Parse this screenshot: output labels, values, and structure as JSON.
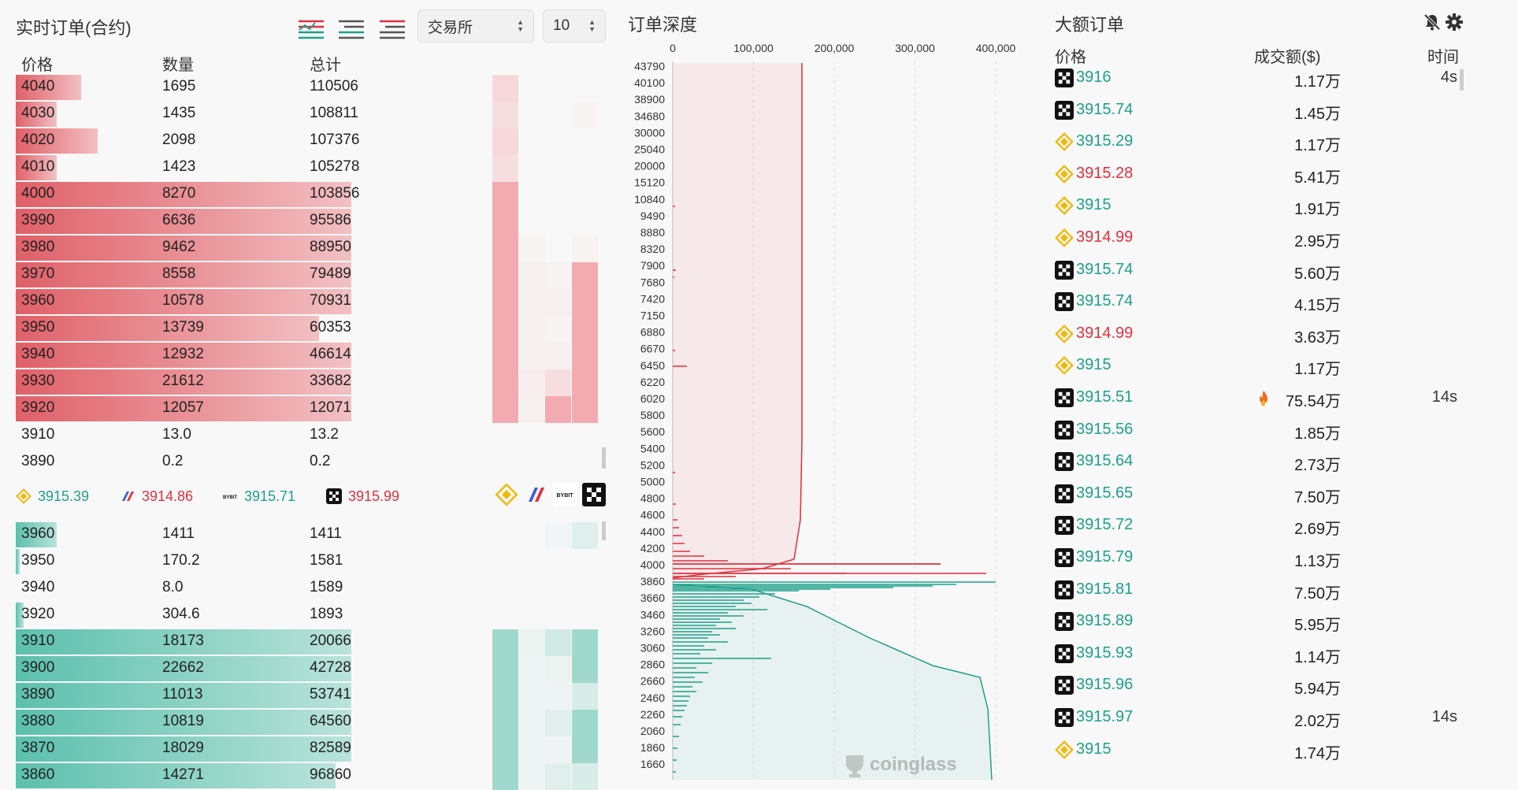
{
  "orderbook": {
    "title": "实时订单(合约)",
    "exchange_select": "交易所",
    "depth_select": "10",
    "headers": {
      "price": "价格",
      "qty": "数量",
      "total": "总计"
    },
    "asks": [
      {
        "price": "4040",
        "qty": "1695",
        "total": "110506",
        "fill": 0.16,
        "heavy": false
      },
      {
        "price": "4030",
        "qty": "1435",
        "total": "108811",
        "fill": 0.1,
        "heavy": false
      },
      {
        "price": "4020",
        "qty": "2098",
        "total": "107376",
        "fill": 0.2,
        "heavy": false
      },
      {
        "price": "4010",
        "qty": "1423",
        "total": "105278",
        "fill": 0.1,
        "heavy": false
      },
      {
        "price": "4000",
        "qty": "8270",
        "total": "103856",
        "fill": 0.82,
        "heavy": true
      },
      {
        "price": "3990",
        "qty": "6636",
        "total": "95586",
        "fill": 0.82,
        "heavy": true
      },
      {
        "price": "3980",
        "qty": "9462",
        "total": "88950",
        "fill": 0.82,
        "heavy": true
      },
      {
        "price": "3970",
        "qty": "8558",
        "total": "79489",
        "fill": 0.82,
        "heavy": true
      },
      {
        "price": "3960",
        "qty": "10578",
        "total": "70931",
        "fill": 0.82,
        "heavy": true
      },
      {
        "price": "3950",
        "qty": "13739",
        "total": "60353",
        "fill": 0.74,
        "heavy": true
      },
      {
        "price": "3940",
        "qty": "12932",
        "total": "46614",
        "fill": 0.82,
        "heavy": true
      },
      {
        "price": "3930",
        "qty": "21612",
        "total": "33682",
        "fill": 0.82,
        "heavy": true
      },
      {
        "price": "3920",
        "qty": "12057",
        "total": "12071",
        "fill": 0.82,
        "heavy": true
      },
      {
        "price": "3910",
        "qty": "13.0",
        "total": "13.2",
        "fill": 0,
        "heavy": false
      },
      {
        "price": "3890",
        "qty": "0.2",
        "total": "0.2",
        "fill": 0,
        "heavy": false
      }
    ],
    "exchange_prices": [
      {
        "icon": "binance-icon",
        "price": "3915.39",
        "dir": "up"
      },
      {
        "icon": "bitmex-icon",
        "price": "3914.86",
        "dir": "down"
      },
      {
        "icon": "bybit-icon",
        "price": "3915.71",
        "dir": "up"
      },
      {
        "icon": "okx-icon",
        "price": "3915.99",
        "dir": "down"
      }
    ],
    "bids": [
      {
        "price": "3960",
        "qty": "1411",
        "total": "1411",
        "fill": 0.1,
        "heavy": false
      },
      {
        "price": "3950",
        "qty": "170.2",
        "total": "1581",
        "fill": 0.01,
        "heavy": false
      },
      {
        "price": "3940",
        "qty": "8.0",
        "total": "1589",
        "fill": 0,
        "heavy": false
      },
      {
        "price": "3920",
        "qty": "304.6",
        "total": "1893",
        "fill": 0.02,
        "heavy": false
      },
      {
        "price": "3910",
        "qty": "18173",
        "total": "20066",
        "fill": 0.82,
        "heavy": true
      },
      {
        "price": "3900",
        "qty": "22662",
        "total": "42728",
        "fill": 0.82,
        "heavy": true
      },
      {
        "price": "3890",
        "qty": "11013",
        "total": "53741",
        "fill": 0.82,
        "heavy": true
      },
      {
        "price": "3880",
        "qty": "10819",
        "total": "64560",
        "fill": 0.82,
        "heavy": true
      },
      {
        "price": "3870",
        "qty": "18029",
        "total": "82589",
        "fill": 0.82,
        "heavy": true
      },
      {
        "price": "3860",
        "qty": "14271",
        "total": "96860",
        "fill": 0.78,
        "heavy": true
      }
    ],
    "colors": {
      "ask": "#e06068",
      "ask_light": "#f2c0c3",
      "bid": "#5cc0ad",
      "bid_light": "#b9e3da"
    }
  },
  "depth": {
    "title": "订单深度",
    "x_ticks": [
      "0",
      "100,000",
      "200,000",
      "300,000",
      "400,000"
    ],
    "y_labels": [
      "43790",
      "40100",
      "38900",
      "34680",
      "30000",
      "25040",
      "20000",
      "15120",
      "10840",
      "9490",
      "8880",
      "8320",
      "7900",
      "7680",
      "7420",
      "7150",
      "6880",
      "6670",
      "6450",
      "6220",
      "6020",
      "5800",
      "5600",
      "5400",
      "5200",
      "5000",
      "4800",
      "4600",
      "4400",
      "4200",
      "4000",
      "3860",
      "3660",
      "3460",
      "3260",
      "3060",
      "2860",
      "2660",
      "2460",
      "2260",
      "2060",
      "1860",
      "1660"
    ],
    "watermark": "coinglass"
  },
  "big_orders": {
    "title": "大额订单",
    "headers": {
      "price": "价格",
      "amount": "成交额($)",
      "time": "时间"
    },
    "rows": [
      {
        "ex": "okx-icon",
        "price": "3916",
        "side": "buy",
        "amount": "1.17万",
        "time": "4s",
        "fire": false
      },
      {
        "ex": "okx-icon",
        "price": "3915.74",
        "side": "buy",
        "amount": "1.45万",
        "time": "",
        "fire": false
      },
      {
        "ex": "binance-icon",
        "price": "3915.29",
        "side": "buy",
        "amount": "1.17万",
        "time": "",
        "fire": false
      },
      {
        "ex": "binance-icon",
        "price": "3915.28",
        "side": "sell",
        "amount": "5.41万",
        "time": "",
        "fire": false
      },
      {
        "ex": "binance-icon",
        "price": "3915",
        "side": "buy",
        "amount": "1.91万",
        "time": "",
        "fire": false
      },
      {
        "ex": "binance-icon",
        "price": "3914.99",
        "side": "sell",
        "amount": "2.95万",
        "time": "",
        "fire": false
      },
      {
        "ex": "okx-icon",
        "price": "3915.74",
        "side": "buy",
        "amount": "5.60万",
        "time": "",
        "fire": false
      },
      {
        "ex": "okx-icon",
        "price": "3915.74",
        "side": "buy",
        "amount": "4.15万",
        "time": "",
        "fire": false
      },
      {
        "ex": "binance-icon",
        "price": "3914.99",
        "side": "sell",
        "amount": "3.63万",
        "time": "",
        "fire": false
      },
      {
        "ex": "binance-icon",
        "price": "3915",
        "side": "buy",
        "amount": "1.17万",
        "time": "",
        "fire": false
      },
      {
        "ex": "okx-icon",
        "price": "3915.51",
        "side": "buy",
        "amount": "75.54万",
        "time": "14s",
        "fire": true
      },
      {
        "ex": "okx-icon",
        "price": "3915.56",
        "side": "buy",
        "amount": "1.85万",
        "time": "",
        "fire": false
      },
      {
        "ex": "okx-icon",
        "price": "3915.64",
        "side": "buy",
        "amount": "2.73万",
        "time": "",
        "fire": false
      },
      {
        "ex": "okx-icon",
        "price": "3915.65",
        "side": "buy",
        "amount": "7.50万",
        "time": "",
        "fire": false
      },
      {
        "ex": "okx-icon",
        "price": "3915.72",
        "side": "buy",
        "amount": "2.69万",
        "time": "",
        "fire": false
      },
      {
        "ex": "okx-icon",
        "price": "3915.79",
        "side": "buy",
        "amount": "1.13万",
        "time": "",
        "fire": false
      },
      {
        "ex": "okx-icon",
        "price": "3915.81",
        "side": "buy",
        "amount": "7.50万",
        "time": "",
        "fire": false
      },
      {
        "ex": "okx-icon",
        "price": "3915.89",
        "side": "buy",
        "amount": "5.95万",
        "time": "",
        "fire": false
      },
      {
        "ex": "okx-icon",
        "price": "3915.93",
        "side": "buy",
        "amount": "1.14万",
        "time": "",
        "fire": false
      },
      {
        "ex": "okx-icon",
        "price": "3915.96",
        "side": "buy",
        "amount": "5.94万",
        "time": "",
        "fire": false
      },
      {
        "ex": "okx-icon",
        "price": "3915.97",
        "side": "buy",
        "amount": "2.02万",
        "time": "14s",
        "fire": false
      },
      {
        "ex": "binance-icon",
        "price": "3915",
        "side": "buy",
        "amount": "1.74万",
        "time": "",
        "fire": false
      }
    ]
  }
}
